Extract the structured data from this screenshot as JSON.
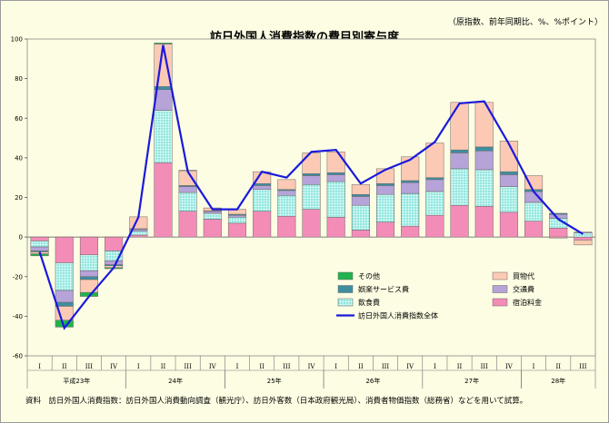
{
  "chart_data": {
    "type": "bar",
    "stacked": true,
    "title": "訪日外国人消費指数の費目別寄与度",
    "subtitle": "（原指数、前年同期比、%、%ポイント）",
    "source_note": "資料　訪日外国人消費指数：訪日外国人消費動向調査（観光庁）、訪日外客数（日本政府観光局）、消費者物価指数（総務省）などを用いて試算。",
    "ylim": [
      -60,
      100
    ],
    "yticks": [
      -60,
      -40,
      -20,
      0,
      20,
      40,
      60,
      80,
      100
    ],
    "legend_position": "lower-right",
    "categories": [
      "I",
      "II",
      "III",
      "IV",
      "I",
      "II",
      "III",
      "IV",
      "I",
      "II",
      "III",
      "IV",
      "I",
      "II",
      "III",
      "IV",
      "I",
      "II",
      "III",
      "IV",
      "I",
      "II",
      "III"
    ],
    "year_groups": [
      {
        "label": "平成23年",
        "start": 0,
        "count": 4
      },
      {
        "label": "24年",
        "start": 4,
        "count": 4
      },
      {
        "label": "25年",
        "start": 8,
        "count": 4
      },
      {
        "label": "26年",
        "start": 12,
        "count": 4
      },
      {
        "label": "27年",
        "start": 16,
        "count": 4
      },
      {
        "label": "28年",
        "start": 20,
        "count": 3
      }
    ],
    "colors": {
      "宿泊料金": "#f48cb8",
      "飲食費": "#a8f0e8",
      "交通費": "#b6a3d8",
      "娯楽サービス費": "#3f8ea0",
      "買物代": "#fccab4",
      "その他": "#22b34c",
      "訪日外国人消費指数全体": "#1a1adc"
    },
    "series": [
      {
        "name": "宿泊料金",
        "values": [
          -2,
          -13,
          -9,
          -7,
          1,
          37.5,
          13,
          9,
          7,
          13,
          10.5,
          14,
          10,
          3.5,
          7.5,
          5.5,
          11,
          16,
          15.5,
          12.5,
          8,
          4.5,
          -1.5
        ]
      },
      {
        "name": "飲食費",
        "values": [
          -3,
          -14,
          -8,
          -5,
          2,
          26.5,
          9.5,
          3,
          3,
          11,
          10.5,
          12.5,
          18,
          12.5,
          14,
          16.5,
          12,
          18.5,
          18.5,
          13,
          9.5,
          5,
          2
        ]
      },
      {
        "name": "交通費",
        "values": [
          -2,
          -6,
          -3,
          -2,
          1,
          10.5,
          3,
          1,
          1,
          2,
          2.5,
          4.5,
          3.5,
          4.5,
          4.5,
          5.5,
          6,
          8,
          9.5,
          6,
          5.5,
          2,
          0.5
        ]
      },
      {
        "name": "娯楽サービス費",
        "values": [
          -0.5,
          -2,
          -1.5,
          -0.5,
          0.2,
          1.5,
          0.5,
          0.2,
          0.5,
          1,
          0.5,
          1,
          1,
          1,
          1,
          1,
          1,
          1.5,
          2,
          1.5,
          1,
          0.5,
          0
        ]
      },
      {
        "name": "買物代",
        "values": [
          -1,
          -7,
          -6.5,
          -1,
          6,
          21.5,
          7.5,
          1.5,
          2.5,
          6,
          5,
          10.5,
          10.5,
          5,
          7.5,
          12,
          17.5,
          24,
          22.5,
          15.5,
          7,
          -0.5,
          -2.5
        ]
      },
      {
        "name": "その他",
        "values": [
          -1,
          -3.5,
          -2,
          -0.5,
          0,
          0.5,
          0.2,
          0,
          0,
          0,
          0,
          0,
          0,
          0,
          0,
          0,
          0,
          0,
          0,
          0,
          0,
          0,
          0
        ]
      }
    ],
    "line": {
      "name": "訪日外国人消費指数全体",
      "values": [
        -7.5,
        -46,
        -30,
        -15.5,
        10,
        97,
        33,
        14,
        14,
        33,
        30,
        43,
        44,
        27,
        34,
        39,
        48,
        67.5,
        68.5,
        47,
        23,
        9,
        1.5
      ]
    },
    "legend": [
      {
        "name": "その他",
        "column": 0,
        "row": 0
      },
      {
        "name": "買物代",
        "column": 1,
        "row": 0
      },
      {
        "name": "娯楽サービス費",
        "column": 0,
        "row": 1
      },
      {
        "name": "交通費",
        "column": 1,
        "row": 1
      },
      {
        "name": "飲食費",
        "column": 0,
        "row": 2
      },
      {
        "name": "宿泊料金",
        "column": 1,
        "row": 2
      },
      {
        "name": "訪日外国人消費指数全体",
        "column": 0,
        "row": 3
      }
    ]
  }
}
